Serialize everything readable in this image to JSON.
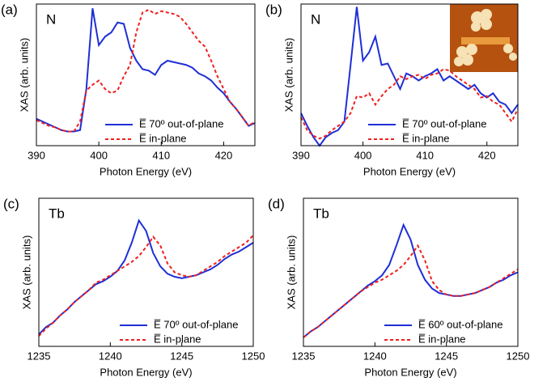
{
  "chart_data": [
    {
      "type": "line",
      "panel_label": "(a)",
      "annotation": "N",
      "xlabel": "Photon Energy (eV)",
      "ylabel": "XAS (arb. units)",
      "xlim": [
        390,
        425
      ],
      "xticks": [
        390,
        400,
        410,
        420
      ],
      "ylim": [
        0,
        1
      ],
      "legend": "lower right",
      "x": [
        390,
        391,
        392,
        393,
        394,
        395,
        396,
        397,
        398,
        399,
        400,
        401,
        402,
        403,
        404,
        405,
        406,
        407,
        408,
        409,
        410,
        411,
        412,
        413,
        414,
        415,
        416,
        417,
        418,
        419,
        420,
        421,
        422,
        423,
        424,
        425
      ],
      "series": [
        {
          "name": "E̅ 70º out-of-plane",
          "color": "#1f2fd6",
          "linestyle": "solid",
          "values": [
            0.19,
            0.17,
            0.15,
            0.13,
            0.11,
            0.1,
            0.1,
            0.11,
            0.4,
            0.97,
            0.71,
            0.77,
            0.8,
            0.87,
            0.86,
            0.69,
            0.6,
            0.54,
            0.53,
            0.5,
            0.57,
            0.6,
            0.59,
            0.58,
            0.57,
            0.55,
            0.51,
            0.49,
            0.46,
            0.41,
            0.37,
            0.31,
            0.26,
            0.2,
            0.14,
            0.16
          ]
        },
        {
          "name": "E̅ in-plane",
          "color": "#f0201e",
          "linestyle": "dashed",
          "values": [
            0.18,
            0.16,
            0.14,
            0.13,
            0.11,
            0.1,
            0.1,
            0.17,
            0.39,
            0.43,
            0.46,
            0.4,
            0.37,
            0.39,
            0.49,
            0.57,
            0.8,
            0.94,
            0.96,
            0.93,
            0.95,
            0.94,
            0.93,
            0.91,
            0.86,
            0.8,
            0.74,
            0.7,
            0.6,
            0.49,
            0.4,
            0.31,
            0.26,
            0.2,
            0.14,
            0.17
          ]
        }
      ]
    },
    {
      "type": "line",
      "panel_label": "(b)",
      "annotation": "N",
      "xlabel": "Photon Energy (eV)",
      "ylabel": "XAS (arb. units)",
      "xlim": [
        390,
        425
      ],
      "xticks": [
        390,
        400,
        410,
        420
      ],
      "ylim": [
        0,
        1
      ],
      "legend": "lower right",
      "x": [
        390,
        391,
        392,
        393,
        394,
        395,
        396,
        397,
        398,
        399,
        400,
        401,
        402,
        403,
        404,
        405,
        406,
        407,
        408,
        409,
        410,
        411,
        412,
        413,
        414,
        415,
        416,
        417,
        418,
        419,
        420,
        421,
        422,
        423,
        424,
        425
      ],
      "series": [
        {
          "name": "E̅ 70º out-of-plane",
          "color": "#1f2fd6",
          "linestyle": "solid",
          "values": [
            0.23,
            0.14,
            0.06,
            0.0,
            0.06,
            0.09,
            0.11,
            0.17,
            0.57,
            0.98,
            0.6,
            0.66,
            0.77,
            0.57,
            0.58,
            0.49,
            0.4,
            0.51,
            0.49,
            0.46,
            0.49,
            0.51,
            0.54,
            0.46,
            0.49,
            0.46,
            0.43,
            0.4,
            0.43,
            0.37,
            0.34,
            0.37,
            0.31,
            0.29,
            0.23,
            0.29
          ]
        },
        {
          "name": "E̅ in-plane",
          "color": "#f0201e",
          "linestyle": "dashed",
          "values": [
            0.2,
            0.11,
            0.07,
            0.05,
            0.07,
            0.11,
            0.14,
            0.17,
            0.23,
            0.35,
            0.34,
            0.37,
            0.29,
            0.35,
            0.4,
            0.43,
            0.49,
            0.47,
            0.49,
            0.5,
            0.47,
            0.5,
            0.51,
            0.54,
            0.53,
            0.49,
            0.46,
            0.43,
            0.4,
            0.34,
            0.35,
            0.31,
            0.29,
            0.23,
            0.17,
            0.26
          ]
        }
      ]
    },
    {
      "type": "line",
      "panel_label": "(c)",
      "annotation": "Tb",
      "xlabel": "Photon Energy (eV)",
      "ylabel": "XAS (arb. units)",
      "xlim": [
        1235,
        1250
      ],
      "xticks": [
        1235,
        1240,
        1245,
        1250
      ],
      "ylim": [
        0,
        1
      ],
      "legend": "lower right",
      "x": [
        1235,
        1235.5,
        1236,
        1236.5,
        1237,
        1237.5,
        1238,
        1238.5,
        1239,
        1239.5,
        1240,
        1240.5,
        1241,
        1241.5,
        1242,
        1242.5,
        1243,
        1243.5,
        1244,
        1244.5,
        1245,
        1245.5,
        1246,
        1246.5,
        1247,
        1247.5,
        1248,
        1248.5,
        1249,
        1249.5,
        1250
      ],
      "series": [
        {
          "name": "E̅ 70º out-of-plane",
          "color": "#1f2fd6",
          "linestyle": "solid",
          "values": [
            0.08,
            0.13,
            0.16,
            0.21,
            0.25,
            0.3,
            0.34,
            0.38,
            0.42,
            0.44,
            0.47,
            0.51,
            0.58,
            0.7,
            0.85,
            0.78,
            0.63,
            0.54,
            0.49,
            0.47,
            0.46,
            0.47,
            0.48,
            0.5,
            0.52,
            0.55,
            0.59,
            0.62,
            0.64,
            0.67,
            0.7
          ]
        },
        {
          "name": "E̅ in-plane",
          "color": "#f0201e",
          "linestyle": "dashed",
          "values": [
            0.07,
            0.12,
            0.16,
            0.21,
            0.25,
            0.3,
            0.34,
            0.38,
            0.43,
            0.45,
            0.48,
            0.51,
            0.54,
            0.57,
            0.61,
            0.67,
            0.74,
            0.68,
            0.56,
            0.5,
            0.48,
            0.47,
            0.48,
            0.51,
            0.54,
            0.57,
            0.61,
            0.64,
            0.67,
            0.7,
            0.75
          ]
        }
      ]
    },
    {
      "type": "line",
      "panel_label": "(d)",
      "annotation": "Tb",
      "xlabel": "Photon Energy (eV)",
      "ylabel": "XAS (arb. units)",
      "xlim": [
        1235,
        1250
      ],
      "xticks": [
        1235,
        1240,
        1245,
        1250
      ],
      "ylim": [
        0,
        1
      ],
      "legend": "lower right",
      "x": [
        1235,
        1235.5,
        1236,
        1236.5,
        1237,
        1237.5,
        1238,
        1238.5,
        1239,
        1239.5,
        1240,
        1240.5,
        1241,
        1241.5,
        1242,
        1242.5,
        1243,
        1243.5,
        1244,
        1244.5,
        1245,
        1245.5,
        1246,
        1246.5,
        1247,
        1247.5,
        1248,
        1248.5,
        1249,
        1249.5,
        1250
      ],
      "series": [
        {
          "name": "E̅ 60º out-of-plane",
          "color": "#1f2fd6",
          "linestyle": "solid",
          "values": [
            0.06,
            0.1,
            0.13,
            0.17,
            0.21,
            0.25,
            0.29,
            0.33,
            0.37,
            0.41,
            0.44,
            0.48,
            0.55,
            0.68,
            0.82,
            0.72,
            0.55,
            0.45,
            0.39,
            0.36,
            0.35,
            0.34,
            0.34,
            0.35,
            0.36,
            0.38,
            0.4,
            0.43,
            0.45,
            0.48,
            0.5
          ]
        },
        {
          "name": "E̅ in-plane",
          "color": "#f0201e",
          "linestyle": "dashed",
          "values": [
            0.06,
            0.1,
            0.13,
            0.17,
            0.21,
            0.25,
            0.29,
            0.33,
            0.37,
            0.4,
            0.43,
            0.45,
            0.48,
            0.51,
            0.55,
            0.61,
            0.68,
            0.58,
            0.44,
            0.38,
            0.35,
            0.34,
            0.34,
            0.35,
            0.36,
            0.38,
            0.4,
            0.43,
            0.46,
            0.49,
            0.52
          ]
        }
      ]
    }
  ]
}
